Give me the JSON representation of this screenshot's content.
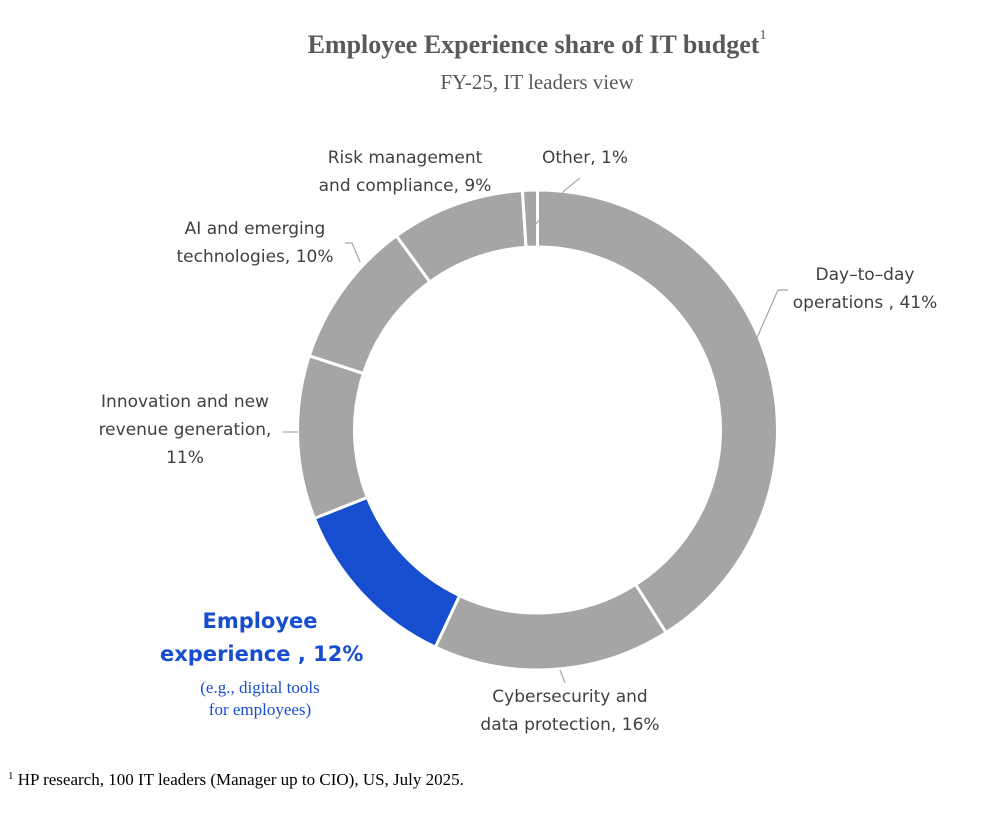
{
  "chart_data": {
    "type": "pie",
    "variant": "donut",
    "title": "Employee Experience share of IT budget",
    "title_footnote_marker": "1",
    "subtitle": "FY-25, IT leaders view",
    "start": "top",
    "direction": "clockwise",
    "slices": [
      {
        "name": "Day–to–day operations",
        "value": 41,
        "color": "#a5a5a5",
        "label_lines": [
          "Day–to–day",
          "operations , 41%"
        ]
      },
      {
        "name": "Cybersecurity and data protection",
        "value": 16,
        "color": "#a5a5a5",
        "label_lines": [
          "Cybersecurity and",
          "data protection, 16%"
        ]
      },
      {
        "name": "Employee experience",
        "value": 12,
        "color": "#174ecf",
        "label_lines": [
          "Employee",
          "experience , 12%"
        ],
        "note_lines": [
          "(e.g., digital tools",
          "for employees)"
        ]
      },
      {
        "name": "Innovation and new revenue generation",
        "value": 11,
        "color": "#a5a5a5",
        "label_lines": [
          "Innovation and new",
          "revenue generation,",
          "11%"
        ]
      },
      {
        "name": "AI and emerging technologies",
        "value": 10,
        "color": "#a5a5a5",
        "label_lines": [
          "AI and emerging",
          "technologies, 10%"
        ]
      },
      {
        "name": "Risk management and compliance",
        "value": 9,
        "color": "#a5a5a5",
        "label_lines": [
          "Risk management",
          "and compliance, 9%"
        ]
      },
      {
        "name": "Other",
        "value": 1,
        "color": "#a5a5a5",
        "label_lines": [
          "Other, 1%"
        ]
      }
    ],
    "footnote_marker": "1",
    "footnote": "HP research, 100 IT leaders (Manager up to CIO), US, July 2025."
  }
}
